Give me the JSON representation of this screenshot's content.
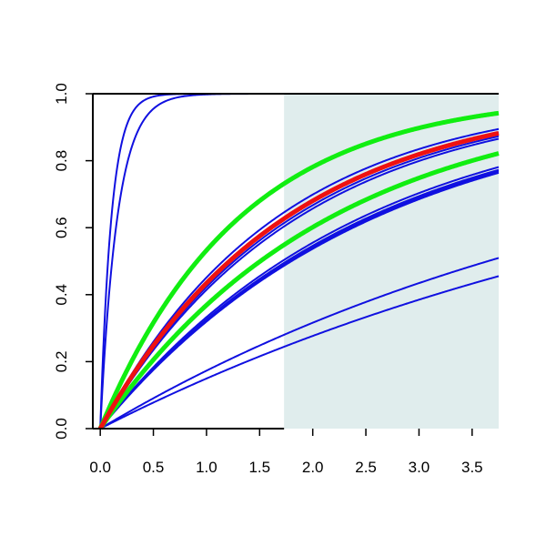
{
  "chart_data": {
    "type": "line",
    "title": "",
    "xlabel": "",
    "ylabel": "",
    "xlim": [
      -0.07,
      3.75
    ],
    "ylim": [
      0,
      1
    ],
    "x_ticks": [
      "0.0",
      "0.5",
      "1.0",
      "1.5",
      "2.0",
      "2.5",
      "3.0",
      "3.5"
    ],
    "y_ticks": [
      "0.0",
      "0.2",
      "0.4",
      "0.6",
      "0.8",
      "1.0"
    ],
    "shaded_region": {
      "x_from": 1.73,
      "x_to": 3.75,
      "color": "#e0eded"
    },
    "colors": {
      "blue": "#1010e0",
      "red": "#ee1111",
      "green": "#11ee11",
      "axis": "#000000"
    },
    "grid": false,
    "legend": "none",
    "series": [
      {
        "color": "blue",
        "rate": 9.5,
        "emphasis": false
      },
      {
        "color": "blue",
        "rate": 6.2,
        "emphasis": false
      },
      {
        "color": "blue",
        "rate": 0.19,
        "emphasis": false
      },
      {
        "color": "blue",
        "rate": 0.162,
        "emphasis": false
      },
      {
        "color": "blue",
        "rate": 0.39,
        "emphasis": false
      },
      {
        "color": "blue",
        "rate": 0.395,
        "emphasis": false
      },
      {
        "color": "blue",
        "rate": 0.405,
        "emphasis": false
      },
      {
        "color": "blue",
        "rate": 0.385,
        "emphasis": false
      },
      {
        "color": "blue",
        "rate": 0.55,
        "emphasis": false
      },
      {
        "color": "blue",
        "rate": 0.535,
        "emphasis": false
      },
      {
        "color": "blue",
        "rate": 0.575,
        "emphasis": false
      },
      {
        "color": "blue",
        "rate": 0.6,
        "emphasis": false
      },
      {
        "color": "green",
        "rate": 0.46,
        "emphasis": true
      },
      {
        "color": "green",
        "rate": 0.76,
        "emphasis": true
      },
      {
        "color": "red",
        "rate": 0.57,
        "emphasis": true
      }
    ]
  }
}
